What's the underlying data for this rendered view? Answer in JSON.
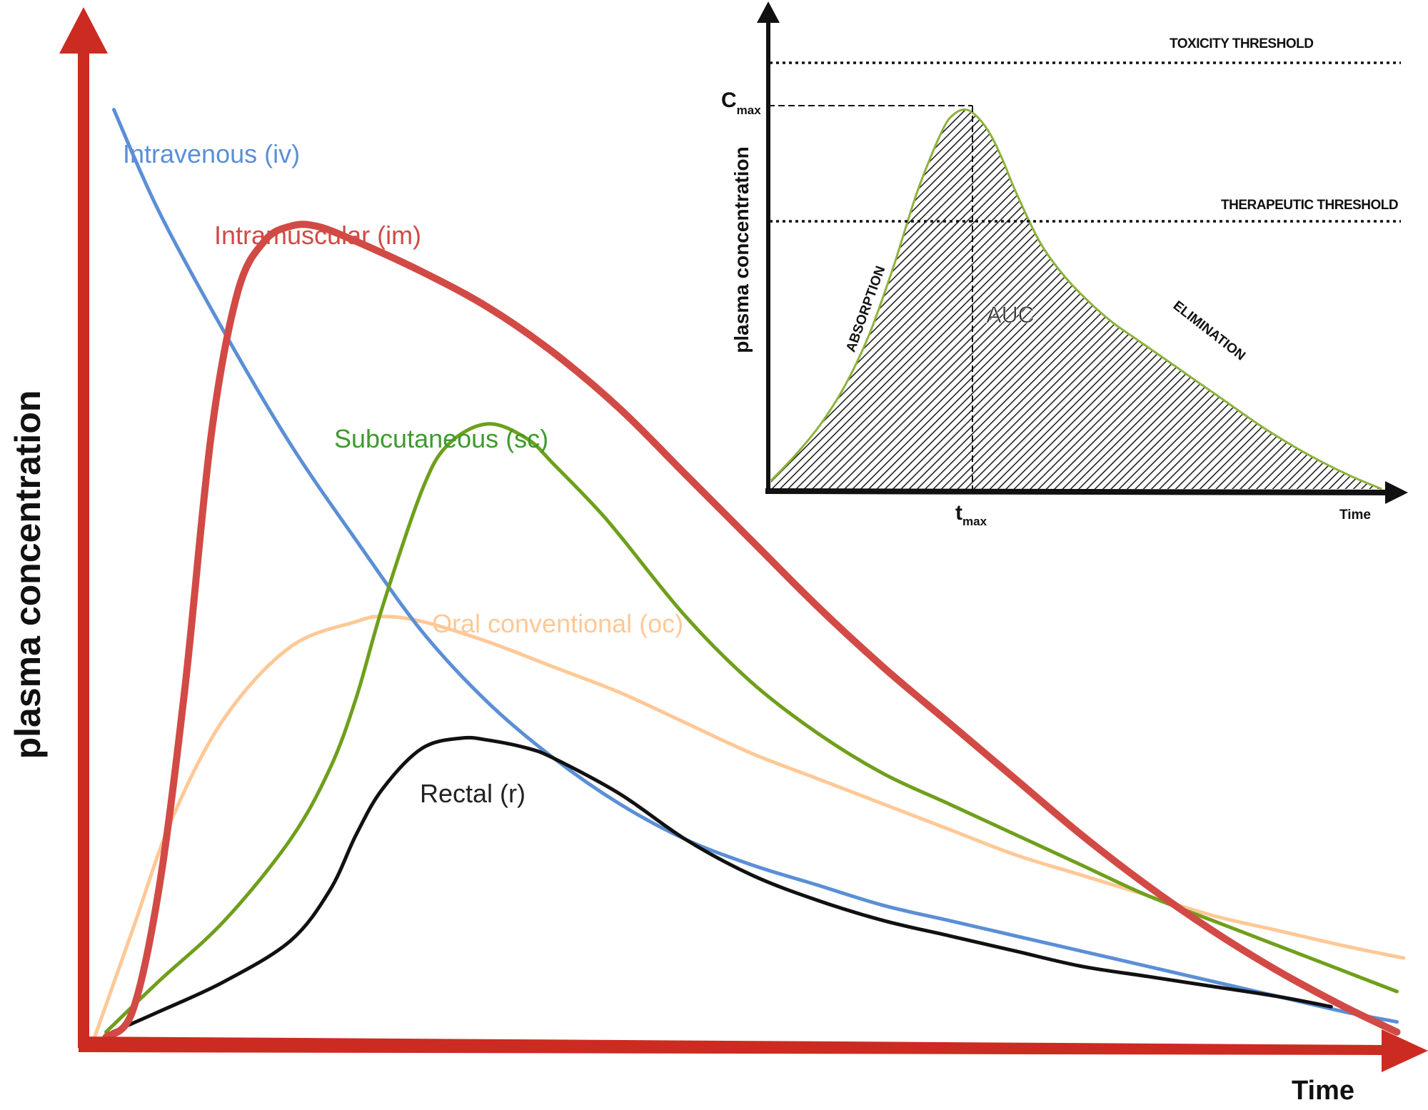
{
  "colors": {
    "axis_main": "#cc2b22",
    "axis_inset": "#111111",
    "intravenous": "#5b8fd6",
    "intramuscular": "#d24a45",
    "subcutaneous": "#6f9f1c",
    "oral": "#ffc896",
    "rectal": "#111111",
    "inset_curve": "#8db33a"
  },
  "chart_data": [
    {
      "type": "line",
      "title": "",
      "xlabel": "Time",
      "ylabel": "plasma concentration",
      "xlim": [
        0,
        100
      ],
      "ylim": [
        0,
        100
      ],
      "grid": false,
      "series": [
        {
          "name": "Intravenous (iv)",
          "color_key": "intravenous",
          "x": [
            1.6,
            5,
            10,
            15,
            20,
            25,
            30,
            35,
            40,
            45,
            50,
            55,
            60,
            65,
            70,
            75,
            80,
            85,
            90,
            95,
            99
          ],
          "y": [
            92,
            82,
            70,
            59,
            49.5,
            40.5,
            33.5,
            28,
            23.5,
            20,
            17.5,
            15.5,
            13.5,
            12,
            10.5,
            9,
            7.5,
            6,
            4.5,
            3,
            2
          ]
        },
        {
          "name": "Intramuscular (im)",
          "color_key": "intramuscular",
          "x": [
            1,
            3,
            5,
            7,
            9,
            11,
            13,
            15,
            17,
            20,
            25,
            30,
            35,
            40,
            45,
            50,
            55,
            60,
            65,
            70,
            75,
            80,
            85,
            90,
            95,
            99
          ],
          "y": [
            0.5,
            3,
            15,
            35,
            60,
            74,
            79,
            80.5,
            80.5,
            79,
            76,
            72.5,
            68,
            62.5,
            56,
            49.5,
            43,
            37,
            31.5,
            26,
            20.5,
            15.5,
            11,
            7,
            3.5,
            1
          ]
        },
        {
          "name": "Subcutaneous (sc)",
          "color_key": "subcutaneous",
          "x": [
            1,
            5,
            10,
            15,
            18,
            20,
            22,
            25,
            27,
            30,
            33,
            35,
            38,
            40,
            45,
            50,
            55,
            60,
            65,
            70,
            75,
            80,
            85,
            90,
            95,
            99
          ],
          "y": [
            1,
            6,
            12,
            20,
            27,
            34,
            43,
            54.5,
            59,
            61,
            59.5,
            57,
            53,
            50,
            42,
            35.5,
            30.5,
            26.5,
            23.5,
            20.5,
            17.5,
            14.5,
            12,
            9.5,
            7,
            5
          ]
        },
        {
          "name": "Oral conventional (oc)",
          "color_key": "oral",
          "x": [
            0,
            3,
            6,
            10,
            15,
            20,
            22,
            25,
            30,
            35,
            40,
            45,
            50,
            55,
            60,
            65,
            70,
            75,
            80,
            85,
            90,
            95,
            99.5
          ],
          "y": [
            0,
            11,
            22,
            32,
            39,
            41.5,
            42,
            41.5,
            39.5,
            37,
            34.5,
            31.5,
            28.5,
            26,
            23.5,
            21,
            18.5,
            16.5,
            14.5,
            12.5,
            11,
            9.5,
            8.3
          ]
        },
        {
          "name": "Rectal (r)",
          "color_key": "rectal",
          "x": [
            1.5,
            5,
            10,
            15,
            18,
            20,
            22,
            25,
            28,
            30,
            33,
            35,
            40,
            45,
            50,
            55,
            60,
            65,
            70,
            75,
            80,
            85,
            90,
            94
          ],
          "y": [
            1,
            3,
            6,
            10,
            15,
            20.5,
            25,
            29,
            30,
            29.8,
            29,
            28,
            24.5,
            20,
            16.5,
            14,
            12,
            10.5,
            9,
            7.5,
            6.5,
            5.5,
            4.5,
            3.5
          ]
        }
      ],
      "annotations": [
        "Intravenous (iv)",
        "Intramuscular (im)",
        "Subcutaneous (sc)",
        "Oral conventional (oc)",
        "Rectal (r)"
      ]
    },
    {
      "type": "area",
      "title": "",
      "xlabel": "Time",
      "ylabel": "plasma concentration",
      "xlim": [
        0,
        100
      ],
      "ylim": [
        0,
        100
      ],
      "grid": false,
      "curve": {
        "x": [
          0,
          4,
          8,
          12,
          16,
          20,
          24,
          28,
          30,
          32,
          34,
          36,
          38,
          40,
          44,
          48,
          52,
          56,
          60,
          65,
          70,
          75,
          80,
          85,
          90,
          95,
          100
        ],
        "y": [
          2,
          8,
          15,
          24,
          36,
          52,
          70,
          84,
          88,
          89,
          87,
          83,
          77,
          70,
          58,
          50,
          44,
          39,
          35,
          30,
          25,
          20,
          15,
          10.5,
          6.5,
          3,
          0
        ]
      },
      "thresholds": [
        {
          "label": "TOXICITY THRESHOLD",
          "y": 100
        },
        {
          "label": "THERAPEUTIC THRESHOLD",
          "y": 56
        }
      ],
      "cmax": {
        "label_main": "C",
        "label_sub": "max",
        "y": 89
      },
      "tmax": {
        "label_main": "t",
        "label_sub": "max",
        "x": 32
      },
      "annotations": [
        "ABSORPTION",
        "AUC",
        "ELIMINATION"
      ]
    }
  ]
}
